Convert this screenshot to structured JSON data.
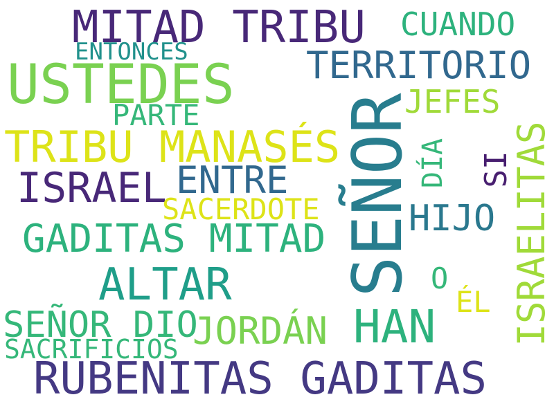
{
  "words": [
    {
      "text": "SEÑOR",
      "color": "#287d8e"
    },
    {
      "text": "MITAD TRIBU",
      "color": "#482878"
    },
    {
      "text": "USTEDES",
      "color": "#7ad151"
    },
    {
      "text": "CUANDO",
      "color": "#2db27d"
    },
    {
      "text": "ENTONCES",
      "color": "#21918c"
    },
    {
      "text": "TERRITORIO",
      "color": "#31688e"
    },
    {
      "text": "JEFES",
      "color": "#a0da39"
    },
    {
      "text": "PARTE",
      "color": "#35b779"
    },
    {
      "text": "TRIBU MANASÉS",
      "color": "#dde318"
    },
    {
      "text": "ISRAEL",
      "color": "#482878"
    },
    {
      "text": "ENTRE",
      "color": "#31688e"
    },
    {
      "text": "DÍA",
      "color": "#35b779"
    },
    {
      "text": "SI",
      "color": "#481f70"
    },
    {
      "text": "ISRAELITAS",
      "color": "#a0da39"
    },
    {
      "text": "SACERDOTE",
      "color": "#dde318"
    },
    {
      "text": "HIJO",
      "color": "#2a788e"
    },
    {
      "text": "GADITAS MITAD",
      "color": "#2db27d"
    },
    {
      "text": "ALTAR",
      "color": "#1f9e89"
    },
    {
      "text": "O",
      "color": "#35b779"
    },
    {
      "text": "ÉL",
      "color": "#dde318"
    },
    {
      "text": "SEÑOR DIO",
      "color": "#35b779"
    },
    {
      "text": "JORDÁN",
      "color": "#7ad151"
    },
    {
      "text": "HAN",
      "color": "#2db27d"
    },
    {
      "text": "SACRIFICIOS",
      "color": "#35b779"
    },
    {
      "text": "RUBENITAS GADITAS",
      "color": "#443983"
    }
  ]
}
